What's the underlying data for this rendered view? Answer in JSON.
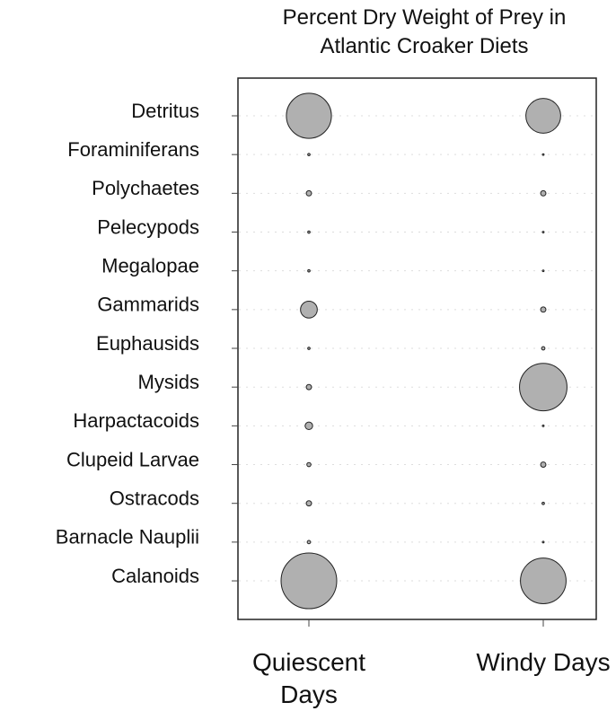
{
  "chart_data": {
    "type": "bubble",
    "title": "Percent Dry Weight of Prey in Atlantic Croaker Diets",
    "categories": [
      "Detritus",
      "Foraminiferans",
      "Polychaetes",
      "Pelecypods",
      "Megalopae",
      "Gammarids",
      "Euphausids",
      "Mysids",
      "Harpactacoids",
      "Clupeid Larvae",
      "Ostracods",
      "Barnacle Nauplii",
      "Calanoids"
    ],
    "color": "#b0b0b0",
    "series": [
      {
        "name": "Quiescent Days",
        "values": [
          36,
          0.1,
          0.5,
          0.1,
          0.1,
          5,
          0.1,
          0.5,
          1,
          0.3,
          0.5,
          0.2,
          55
        ]
      },
      {
        "name": "Windy Days",
        "values": [
          21.5,
          0.05,
          0.5,
          0.05,
          0.05,
          0.5,
          0.2,
          40,
          0.05,
          0.5,
          0.1,
          0.05,
          37
        ]
      }
    ]
  }
}
